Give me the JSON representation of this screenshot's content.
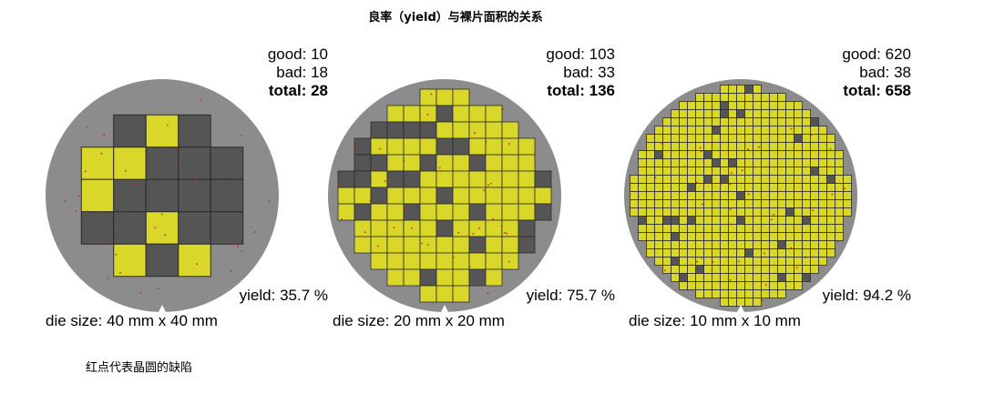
{
  "title": "良率（yield）与裸片面积的关系",
  "note": "红点代表晶圆的缺陷",
  "colors": {
    "wafer_edge": "#8c8c8c",
    "good_die": "#d9d82a",
    "bad_die": "#555555",
    "grid_line": "#2b2b2b",
    "defect": "#cc2222"
  },
  "wafers": [
    {
      "good_label": "good: 10",
      "bad_label": "bad: 18",
      "total_label": "total: 28",
      "yield_label": "yield: 35.7 %",
      "die_size_label": "die size: 40 mm x 40 mm",
      "good": 10,
      "bad": 18,
      "total": 28,
      "yield_percent": 35.7
    },
    {
      "good_label": "good: 103",
      "bad_label": "bad: 33",
      "total_label": "total: 136",
      "yield_label": "yield: 75.7 %",
      "die_size_label": "die size: 20 mm x 20 mm",
      "good": 103,
      "bad": 33,
      "total": 136,
      "yield_percent": 75.7
    },
    {
      "good_label": "good: 620",
      "bad_label": "bad: 38",
      "total_label": "total: 658",
      "yield_label": "yield: 94.2 %",
      "die_size_label": "die size: 10 mm x 10 mm",
      "good": 620,
      "bad": 38,
      "total": 658,
      "yield_percent": 94.2
    }
  ]
}
